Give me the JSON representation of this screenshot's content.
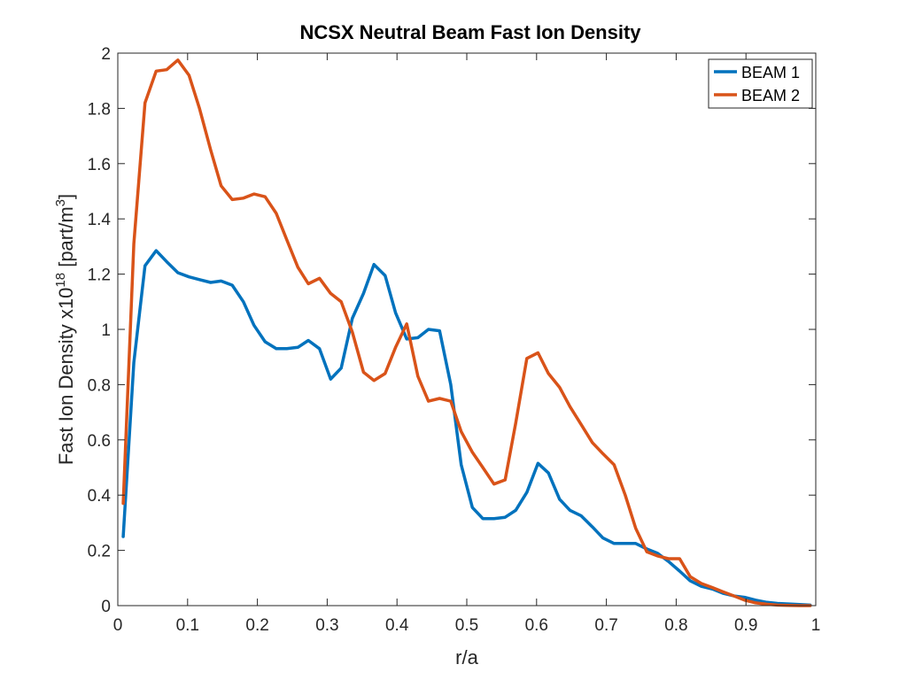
{
  "chart_data": {
    "type": "line",
    "title": "NCSX Neutral Beam Fast Ion Density",
    "xlabel": "r/a",
    "ylabel": {
      "prefix": "Fast Ion Density x10",
      "exponent": "18",
      "unit_open": " [part/m",
      "unit_exponent": "3",
      "unit_close": "]"
    },
    "xlim": [
      0,
      1
    ],
    "ylim": [
      0,
      2
    ],
    "xticks": [
      0,
      0.1,
      0.2,
      0.3,
      0.4,
      0.5,
      0.6,
      0.7,
      0.8,
      0.9,
      1
    ],
    "xtick_labels": [
      "0",
      "0.1",
      "0.2",
      "0.3",
      "0.4",
      "0.5",
      "0.6",
      "0.7",
      "0.8",
      "0.9",
      "1"
    ],
    "yticks": [
      0,
      0.2,
      0.4,
      0.6,
      0.8,
      1,
      1.2,
      1.4,
      1.6,
      1.8,
      2
    ],
    "ytick_labels": [
      "0",
      "0.2",
      "0.4",
      "0.6",
      "0.8",
      "1",
      "1.2",
      "1.4",
      "1.6",
      "1.8",
      "2"
    ],
    "grid": false,
    "legend_position": "top-right",
    "series": [
      {
        "name": "BEAM 1",
        "color": "#0072BD",
        "points": [
          [
            0.0078,
            0.25
          ],
          [
            0.023,
            0.88
          ],
          [
            0.039,
            1.23
          ],
          [
            0.055,
            1.285
          ],
          [
            0.07,
            1.245
          ],
          [
            0.086,
            1.205
          ],
          [
            0.102,
            1.19
          ],
          [
            0.117,
            1.18
          ],
          [
            0.133,
            1.17
          ],
          [
            0.148,
            1.175
          ],
          [
            0.164,
            1.16
          ],
          [
            0.18,
            1.1
          ],
          [
            0.195,
            1.015
          ],
          [
            0.211,
            0.955
          ],
          [
            0.227,
            0.93
          ],
          [
            0.242,
            0.93
          ],
          [
            0.258,
            0.935
          ],
          [
            0.273,
            0.96
          ],
          [
            0.289,
            0.93
          ],
          [
            0.305,
            0.82
          ],
          [
            0.32,
            0.86
          ],
          [
            0.336,
            1.04
          ],
          [
            0.352,
            1.13
          ],
          [
            0.367,
            1.235
          ],
          [
            0.383,
            1.195
          ],
          [
            0.398,
            1.06
          ],
          [
            0.414,
            0.965
          ],
          [
            0.43,
            0.97
          ],
          [
            0.445,
            1.0
          ],
          [
            0.461,
            0.995
          ],
          [
            0.477,
            0.8
          ],
          [
            0.492,
            0.51
          ],
          [
            0.508,
            0.355
          ],
          [
            0.523,
            0.315
          ],
          [
            0.539,
            0.315
          ],
          [
            0.555,
            0.32
          ],
          [
            0.57,
            0.345
          ],
          [
            0.586,
            0.41
          ],
          [
            0.602,
            0.515
          ],
          [
            0.617,
            0.48
          ],
          [
            0.633,
            0.385
          ],
          [
            0.648,
            0.345
          ],
          [
            0.664,
            0.325
          ],
          [
            0.68,
            0.285
          ],
          [
            0.695,
            0.245
          ],
          [
            0.711,
            0.225
          ],
          [
            0.727,
            0.225
          ],
          [
            0.742,
            0.225
          ],
          [
            0.758,
            0.205
          ],
          [
            0.773,
            0.19
          ],
          [
            0.789,
            0.16
          ],
          [
            0.805,
            0.125
          ],
          [
            0.82,
            0.09
          ],
          [
            0.836,
            0.07
          ],
          [
            0.852,
            0.06
          ],
          [
            0.867,
            0.045
          ],
          [
            0.883,
            0.035
          ],
          [
            0.898,
            0.03
          ],
          [
            0.914,
            0.02
          ],
          [
            0.93,
            0.012
          ],
          [
            0.945,
            0.008
          ],
          [
            0.961,
            0.006
          ],
          [
            0.977,
            0.004
          ],
          [
            0.992,
            0.002
          ]
        ]
      },
      {
        "name": "BEAM 2",
        "color": "#D95319",
        "points": [
          [
            0.0078,
            0.37
          ],
          [
            0.023,
            1.31
          ],
          [
            0.039,
            1.82
          ],
          [
            0.055,
            1.935
          ],
          [
            0.07,
            1.94
          ],
          [
            0.086,
            1.975
          ],
          [
            0.102,
            1.92
          ],
          [
            0.117,
            1.8
          ],
          [
            0.133,
            1.65
          ],
          [
            0.148,
            1.52
          ],
          [
            0.164,
            1.47
          ],
          [
            0.18,
            1.475
          ],
          [
            0.195,
            1.49
          ],
          [
            0.211,
            1.48
          ],
          [
            0.227,
            1.42
          ],
          [
            0.242,
            1.325
          ],
          [
            0.258,
            1.225
          ],
          [
            0.273,
            1.165
          ],
          [
            0.289,
            1.185
          ],
          [
            0.305,
            1.13
          ],
          [
            0.32,
            1.1
          ],
          [
            0.336,
            0.99
          ],
          [
            0.352,
            0.845
          ],
          [
            0.367,
            0.815
          ],
          [
            0.383,
            0.84
          ],
          [
            0.398,
            0.935
          ],
          [
            0.414,
            1.02
          ],
          [
            0.43,
            0.83
          ],
          [
            0.445,
            0.74
          ],
          [
            0.461,
            0.75
          ],
          [
            0.477,
            0.74
          ],
          [
            0.492,
            0.63
          ],
          [
            0.508,
            0.555
          ],
          [
            0.523,
            0.5
          ],
          [
            0.539,
            0.44
          ],
          [
            0.555,
            0.455
          ],
          [
            0.57,
            0.66
          ],
          [
            0.586,
            0.895
          ],
          [
            0.602,
            0.915
          ],
          [
            0.617,
            0.84
          ],
          [
            0.633,
            0.79
          ],
          [
            0.648,
            0.72
          ],
          [
            0.664,
            0.655
          ],
          [
            0.68,
            0.59
          ],
          [
            0.695,
            0.55
          ],
          [
            0.711,
            0.51
          ],
          [
            0.727,
            0.4
          ],
          [
            0.742,
            0.28
          ],
          [
            0.758,
            0.195
          ],
          [
            0.773,
            0.18
          ],
          [
            0.789,
            0.17
          ],
          [
            0.805,
            0.17
          ],
          [
            0.82,
            0.105
          ],
          [
            0.836,
            0.08
          ],
          [
            0.852,
            0.065
          ],
          [
            0.867,
            0.05
          ],
          [
            0.883,
            0.035
          ],
          [
            0.898,
            0.02
          ],
          [
            0.914,
            0.01
          ],
          [
            0.93,
            0.005
          ],
          [
            0.945,
            0.002
          ],
          [
            0.961,
            0.001
          ],
          [
            0.977,
            0.0
          ],
          [
            0.992,
            0.0
          ]
        ]
      }
    ]
  }
}
